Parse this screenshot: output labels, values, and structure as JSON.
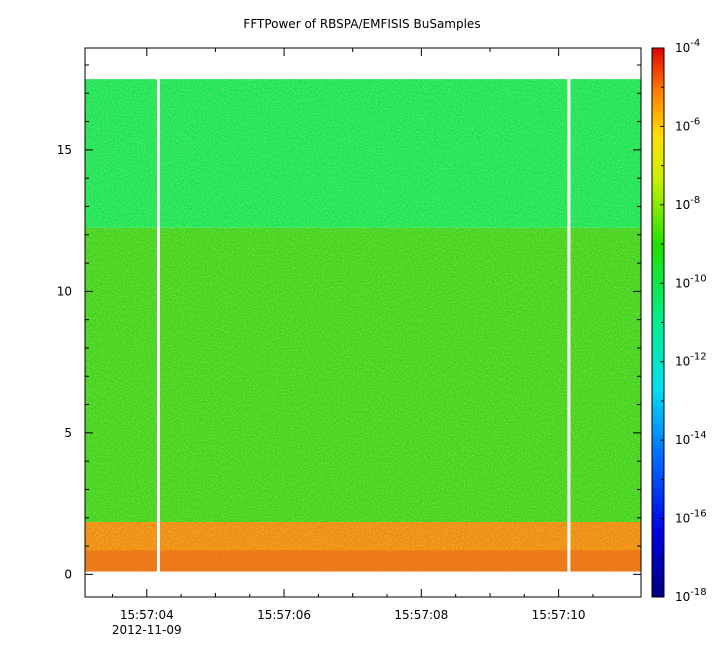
{
  "chart_data": {
    "type": "heatmap",
    "title": "FFTPower of RBSPA/EMFISIS  BuSamples",
    "xlabel": "",
    "ylabel": "",
    "x_date_label": "2012-11-09",
    "x_ticks": [
      "15:57:04",
      "15:57:06",
      "15:57:08",
      "15:57:10"
    ],
    "y_ticks": [
      "0",
      "5",
      "10",
      "15"
    ],
    "ylim": [
      -0.8,
      18.6
    ],
    "colorbar": {
      "scale": "log",
      "range": [
        1e-18,
        0.0001
      ],
      "ticks": [
        {
          "base": "10",
          "exp": "-18",
          "value": 1e-18
        },
        {
          "base": "10",
          "exp": "-16",
          "value": 1e-16
        },
        {
          "base": "10",
          "exp": "-14",
          "value": 1e-14
        },
        {
          "base": "10",
          "exp": "-12",
          "value": 1e-12
        },
        {
          "base": "10",
          "exp": "-10",
          "value": 1e-10
        },
        {
          "base": "10",
          "exp": "-8",
          "value": 1e-08
        },
        {
          "base": "10",
          "exp": "-6",
          "value": 1e-06
        },
        {
          "base": "10",
          "exp": "-4",
          "value": 0.0001
        }
      ]
    },
    "bands": [
      {
        "y_from": 0.1,
        "y_to": 1.85,
        "level": "1e-7",
        "color": "#ef8a10"
      },
      {
        "y_from": 1.85,
        "y_to": 12.25,
        "level": "1e-10",
        "color": "#3fd220"
      },
      {
        "y_from": 12.25,
        "y_to": 17.5,
        "level": "1e-11",
        "color": "#18e45a"
      }
    ],
    "gaps_time": [
      "15:57:04.17",
      "15:57:10.15"
    ],
    "grid": false
  }
}
